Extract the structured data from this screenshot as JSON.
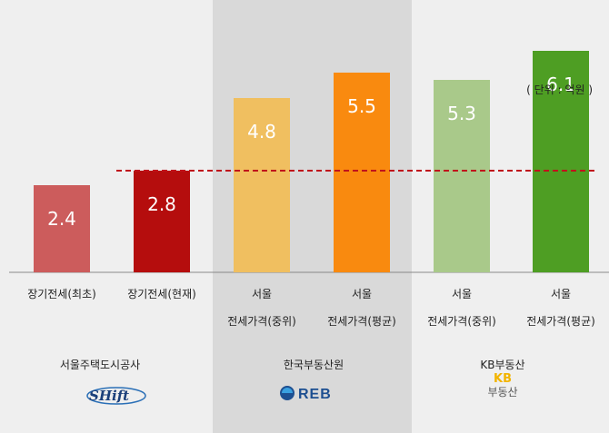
{
  "chart_data": {
    "type": "bar",
    "unit_label": "( 단위 : 억원 )",
    "categories": [
      [
        "장기전세(최초)"
      ],
      [
        "장기전세(현재)"
      ],
      [
        "서울",
        "전세가격(중위)"
      ],
      [
        "서울",
        "전세가격(평균)"
      ],
      [
        "서울",
        "전세가격(중위)"
      ],
      [
        "서울",
        "전세가격(평균)"
      ]
    ],
    "values": [
      2.4,
      2.8,
      4.8,
      5.5,
      5.3,
      6.1
    ],
    "value_labels": [
      "2.4",
      "2.8",
      "4.8",
      "5.5",
      "5.3",
      "6.1"
    ],
    "colors": [
      "#cc5c5c",
      "#b50d0d",
      "#f0bf60",
      "#f98a0f",
      "#a9c98a",
      "#4e9e23"
    ],
    "reference_line": {
      "value": 2.8,
      "color": "#c0121b",
      "style": "dashed"
    },
    "ylim": [
      0,
      7
    ],
    "groups": [
      {
        "title": "서울주택도시공사",
        "logo": "shift-logo",
        "logo_text": "SHift"
      },
      {
        "title": "한국부동산원",
        "logo": "reb-logo",
        "logo_text": "REB"
      },
      {
        "title": "KB부동산",
        "logo": "kb-logo",
        "logo_text_top": "KB",
        "logo_text_bottom": "부동산"
      }
    ],
    "group_shading": [
      false,
      true,
      false
    ],
    "shading_color": "#d9d9d9"
  }
}
